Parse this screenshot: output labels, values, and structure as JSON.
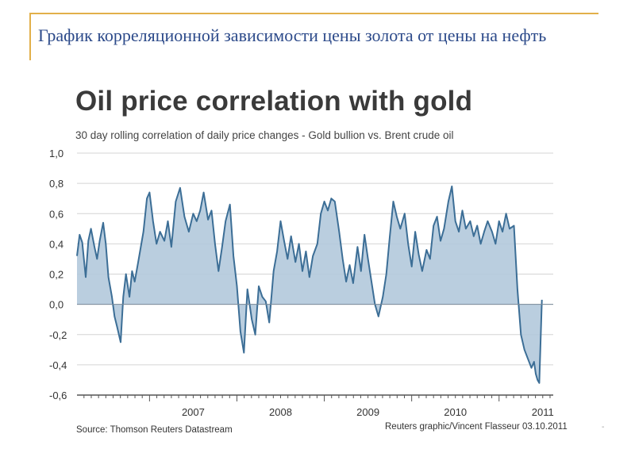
{
  "slide": {
    "title": "График корреляционной зависимости цены золота от цены на нефть"
  },
  "chart_data": {
    "type": "area",
    "title": "Oil price correlation with gold",
    "subtitle": "30 day rolling correlation of daily price changes - Gold bullion vs. Brent crude oil",
    "source": "Source: Thomson Reuters Datastream",
    "credit": "Reuters graphic/Vincent Flasseur 03.10.2011",
    "marker": "-",
    "y_ticks": [
      "1,0",
      "0,8",
      "0,6",
      "0,4",
      "0,2",
      "0,0",
      "-0,2",
      "-0,4",
      "-0,6"
    ],
    "ylim": [
      -0.6,
      1.0
    ],
    "x_tick_labels": [
      "2007",
      "2008",
      "2009",
      "2010",
      "2011"
    ],
    "xlim": [
      2006.17,
      2011.62
    ],
    "grid": true,
    "colors": {
      "line": "#3c6e96",
      "fill": "#b3c9db",
      "grid": "#d4d4d4"
    },
    "series": [
      {
        "x": [
          2006.17,
          2006.2,
          2006.23,
          2006.27,
          2006.3,
          2006.33,
          2006.37,
          2006.4,
          2006.43,
          2006.47,
          2006.5,
          2006.53,
          2006.57,
          2006.6,
          2006.63,
          2006.67,
          2006.7,
          2006.73,
          2006.77,
          2006.8,
          2006.83,
          2006.87,
          2006.9,
          2006.93,
          2006.97,
          2007.0,
          2007.04,
          2007.08,
          2007.12,
          2007.17,
          2007.21,
          2007.25,
          2007.3,
          2007.35,
          2007.4,
          2007.45,
          2007.5,
          2007.54,
          2007.58,
          2007.62,
          2007.67,
          2007.71,
          2007.75,
          2007.79,
          2007.83,
          2007.87,
          2007.92,
          2007.96,
          2008.0,
          2008.04,
          2008.08,
          2008.12,
          2008.17,
          2008.21,
          2008.25,
          2008.29,
          2008.33,
          2008.37,
          2008.42,
          2008.46,
          2008.5,
          2008.54,
          2008.58,
          2008.62,
          2008.67,
          2008.71,
          2008.75,
          2008.79,
          2008.83,
          2008.87,
          2008.92,
          2008.96,
          2009.0,
          2009.04,
          2009.08,
          2009.12,
          2009.17,
          2009.21,
          2009.25,
          2009.29,
          2009.33,
          2009.38,
          2009.42,
          2009.46,
          2009.5,
          2009.54,
          2009.58,
          2009.62,
          2009.67,
          2009.71,
          2009.75,
          2009.79,
          2009.83,
          2009.87,
          2009.92,
          2009.96,
          2010.0,
          2010.04,
          2010.08,
          2010.12,
          2010.17,
          2010.21,
          2010.25,
          2010.29,
          2010.33,
          2010.37,
          2010.42,
          2010.46,
          2010.5,
          2010.54,
          2010.58,
          2010.62,
          2010.67,
          2010.71,
          2010.75,
          2010.79,
          2010.83,
          2010.87,
          2010.92,
          2010.96,
          2011.0,
          2011.04,
          2011.08,
          2011.12,
          2011.17,
          2011.21,
          2011.25,
          2011.29,
          2011.33,
          2011.37,
          2011.4,
          2011.42,
          2011.44,
          2011.46,
          2011.49
        ],
        "values": [
          0.32,
          0.46,
          0.41,
          0.18,
          0.42,
          0.5,
          0.38,
          0.3,
          0.42,
          0.54,
          0.4,
          0.18,
          0.05,
          -0.08,
          -0.15,
          -0.25,
          0.05,
          0.2,
          0.05,
          0.22,
          0.15,
          0.28,
          0.38,
          0.48,
          0.7,
          0.74,
          0.55,
          0.4,
          0.48,
          0.42,
          0.55,
          0.38,
          0.68,
          0.77,
          0.58,
          0.48,
          0.6,
          0.55,
          0.62,
          0.74,
          0.56,
          0.62,
          0.4,
          0.22,
          0.38,
          0.55,
          0.66,
          0.32,
          0.12,
          -0.18,
          -0.32,
          0.1,
          -0.1,
          -0.2,
          0.12,
          0.05,
          0.02,
          -0.12,
          0.22,
          0.35,
          0.55,
          0.42,
          0.3,
          0.45,
          0.28,
          0.4,
          0.22,
          0.35,
          0.18,
          0.32,
          0.4,
          0.6,
          0.68,
          0.62,
          0.7,
          0.68,
          0.48,
          0.3,
          0.15,
          0.26,
          0.14,
          0.38,
          0.22,
          0.46,
          0.3,
          0.15,
          0.0,
          -0.08,
          0.05,
          0.2,
          0.45,
          0.68,
          0.58,
          0.5,
          0.6,
          0.4,
          0.25,
          0.48,
          0.33,
          0.22,
          0.36,
          0.3,
          0.52,
          0.58,
          0.42,
          0.5,
          0.68,
          0.78,
          0.55,
          0.48,
          0.62,
          0.5,
          0.55,
          0.45,
          0.52,
          0.4,
          0.48,
          0.55,
          0.48,
          0.4,
          0.55,
          0.48,
          0.6,
          0.5,
          0.52,
          0.1,
          -0.2,
          -0.3,
          -0.36,
          -0.42,
          -0.38,
          -0.46,
          -0.5,
          -0.52,
          0.03
        ]
      }
    ]
  }
}
